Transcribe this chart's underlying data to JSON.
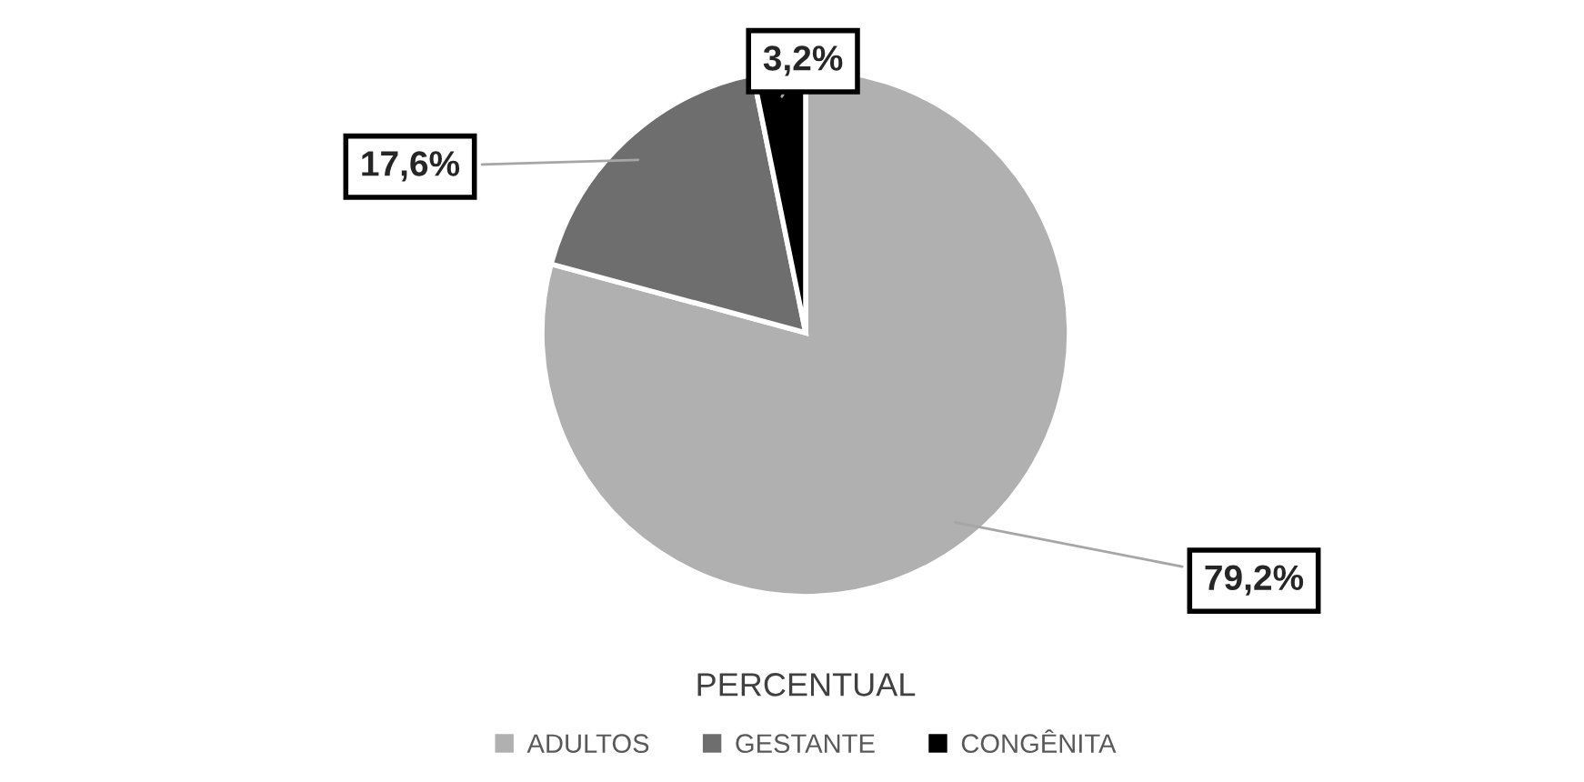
{
  "chart_data": {
    "type": "pie",
    "title": "PERCENTUAL",
    "categories": [
      "ADULTOS",
      "GESTANTE",
      "CONGÊNITA"
    ],
    "values": [
      79.2,
      17.6,
      3.2
    ],
    "colors": [
      "#b0b0b0",
      "#6e6e6e",
      "#000000"
    ],
    "value_labels": [
      "79,2%",
      "17,6%",
      "3,2%"
    ],
    "legend": "bottom"
  }
}
